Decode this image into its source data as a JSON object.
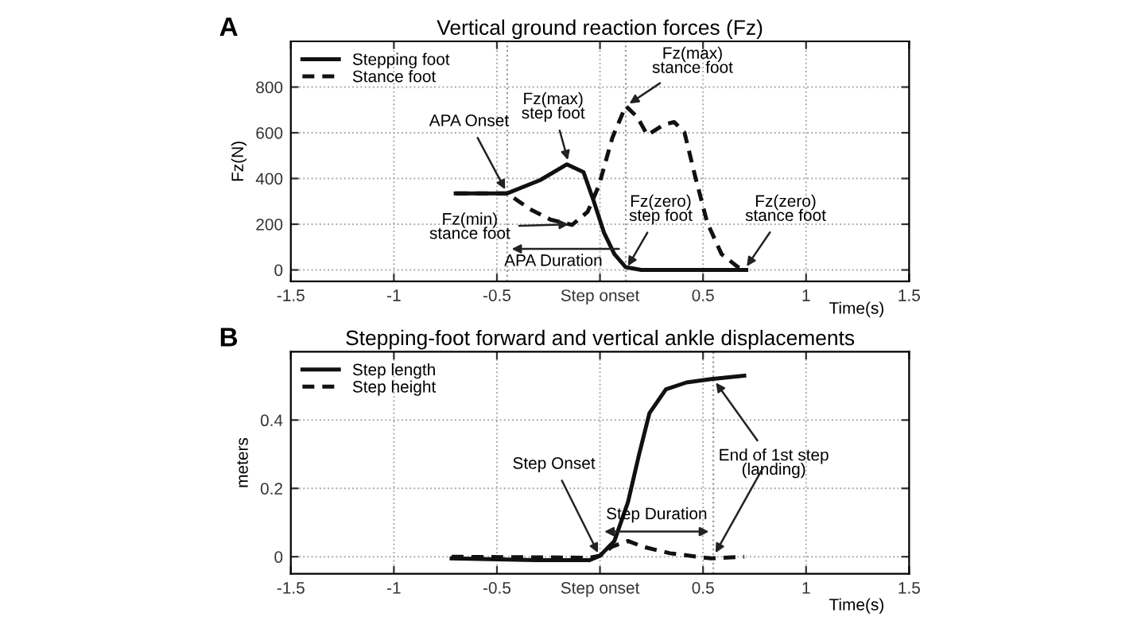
{
  "chart_data": [
    {
      "type": "line",
      "title": "Vertical ground reaction forces (Fz)",
      "ylabel": "Fz(N)",
      "xlabel": "Time(s)",
      "xlim": [
        -1.5,
        1.5
      ],
      "xticks": [
        -1.5,
        -1,
        -0.5,
        {
          "value": 0,
          "label": "Step onset"
        },
        0.5,
        1,
        1.5
      ],
      "ylim": [
        -50,
        1000
      ],
      "yticks": [
        0,
        200,
        400,
        600,
        800
      ],
      "grid": true,
      "legend": "top left",
      "series": [
        {
          "name": "Stepping foot",
          "color": "#111111",
          "line_style": "solid",
          "x": [
            -0.7,
            -0.45,
            -0.29,
            -0.16,
            -0.08,
            -0.03,
            0.02,
            0.07,
            0.125,
            0.2,
            0.71
          ],
          "values": [
            335,
            335,
            393,
            462,
            428,
            300,
            162,
            69,
            12,
            0,
            0
          ]
        },
        {
          "name": "Stance foot",
          "color": "#111111",
          "line_style": "dashed",
          "x": [
            -0.7,
            -0.45,
            -0.34,
            -0.24,
            -0.135,
            -0.06,
            -0.005,
            0.06,
            0.125,
            0.18,
            0.23,
            0.31,
            0.36,
            0.41,
            0.46,
            0.52,
            0.59,
            0.67,
            0.71
          ],
          "values": [
            335,
            335,
            266,
            220,
            197,
            254,
            370,
            578,
            717,
            670,
            590,
            636,
            647,
            601,
            416,
            208,
            69,
            12,
            0
          ]
        }
      ],
      "ref_lines": [
        {
          "axis": "x",
          "value": -0.45
        },
        {
          "axis": "x",
          "value": 0.125
        }
      ],
      "annotations": [
        "A",
        {
          "text": "APA Onset",
          "x": -0.45,
          "y": 335
        },
        {
          "text": "Fz(max)\nstep foot",
          "x": -0.15,
          "y": 462
        },
        {
          "text": "Fz(max)\nstance foot",
          "x": 0.125,
          "y": 717
        },
        {
          "text": "Fz(min)\nstance foot",
          "x": -0.13,
          "y": 200
        },
        {
          "text": "Fz(zero)\nstep foot",
          "x": 0.125,
          "y": 0
        },
        {
          "text": "Fz(zero)\nstance foot",
          "x": 0.7,
          "y": 0
        },
        {
          "text": "APA Duration",
          "x": -0.45,
          "y": 92
        }
      ]
    },
    {
      "type": "line",
      "title": "Stepping-foot forward and vertical ankle displacements",
      "ylabel": "meters",
      "xlabel": "Time(s)",
      "xlim": [
        -1.5,
        1.5
      ],
      "xticks": [
        -1.5,
        -1,
        -0.5,
        {
          "value": 0,
          "label": "Step onset"
        },
        0.5,
        1,
        1.5
      ],
      "ylim": [
        -0.05,
        0.6
      ],
      "yticks": [
        0,
        0.2,
        0.4
      ],
      "grid": true,
      "legend": "top left",
      "series": [
        {
          "name": "Step length",
          "color": "#111111",
          "line_style": "solid",
          "x": [
            -0.72,
            -0.31,
            -0.05,
            0,
            0.07,
            0.136,
            0.19,
            0.24,
            0.32,
            0.42,
            0.54,
            0.7
          ],
          "values": [
            -0.005,
            -0.01,
            -0.01,
            0.003,
            0.046,
            0.16,
            0.3,
            0.42,
            0.49,
            0.51,
            0.52,
            0.53
          ]
        },
        {
          "name": "Step height",
          "color": "#111111",
          "line_style": "dashed",
          "x": [
            -0.72,
            -0.05,
            0,
            0.06,
            0.136,
            0.21,
            0.34,
            0.54,
            0.7
          ],
          "values": [
            0,
            -0.003,
            0.003,
            0.03,
            0.046,
            0.029,
            0.01,
            -0.005,
            0
          ]
        }
      ],
      "ref_lines": [
        {
          "axis": "x",
          "value": 0.55
        }
      ],
      "annotations": [
        "B",
        {
          "text": "Step Onset",
          "x": 0,
          "y": 0
        },
        {
          "text": "End of 1st step\n(landing)",
          "x": 0.55,
          "y": 0.52
        },
        "Step Duration"
      ]
    }
  ]
}
